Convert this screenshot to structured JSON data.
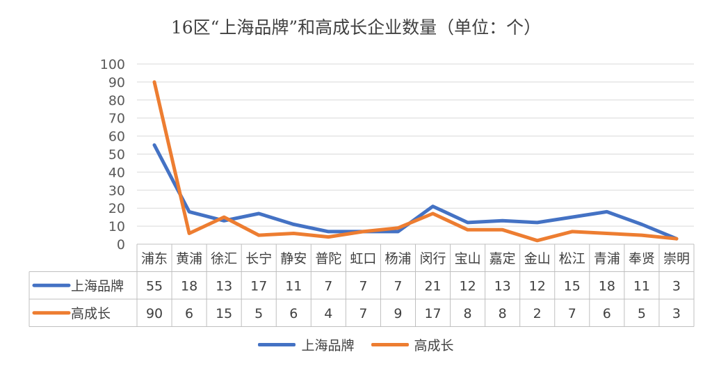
{
  "chart_data": {
    "type": "line",
    "title": "16区“上海品牌”和高成长企业数量（单位：个）",
    "categories": [
      "浦东",
      "黄浦",
      "徐汇",
      "长宁",
      "静安",
      "普陀",
      "虹口",
      "杨浦",
      "闵行",
      "宝山",
      "嘉定",
      "金山",
      "松江",
      "青浦",
      "奉贤",
      "崇明"
    ],
    "series": [
      {
        "name": "上海品牌",
        "color": "#4472C4",
        "values": [
          55,
          18,
          13,
          17,
          11,
          7,
          7,
          7,
          21,
          12,
          13,
          12,
          15,
          18,
          11,
          3
        ]
      },
      {
        "name": "高成长",
        "color": "#ED7D31",
        "values": [
          90,
          6,
          15,
          5,
          6,
          4,
          7,
          9,
          17,
          8,
          8,
          2,
          7,
          6,
          5,
          3
        ]
      }
    ],
    "yticks": [
      "0",
      "10",
      "20",
      "30",
      "40",
      "50",
      "60",
      "70",
      "80",
      "90",
      "100"
    ],
    "ylim": [
      0,
      100
    ],
    "grid": true,
    "data_table": true,
    "legend_position": "bottom"
  }
}
